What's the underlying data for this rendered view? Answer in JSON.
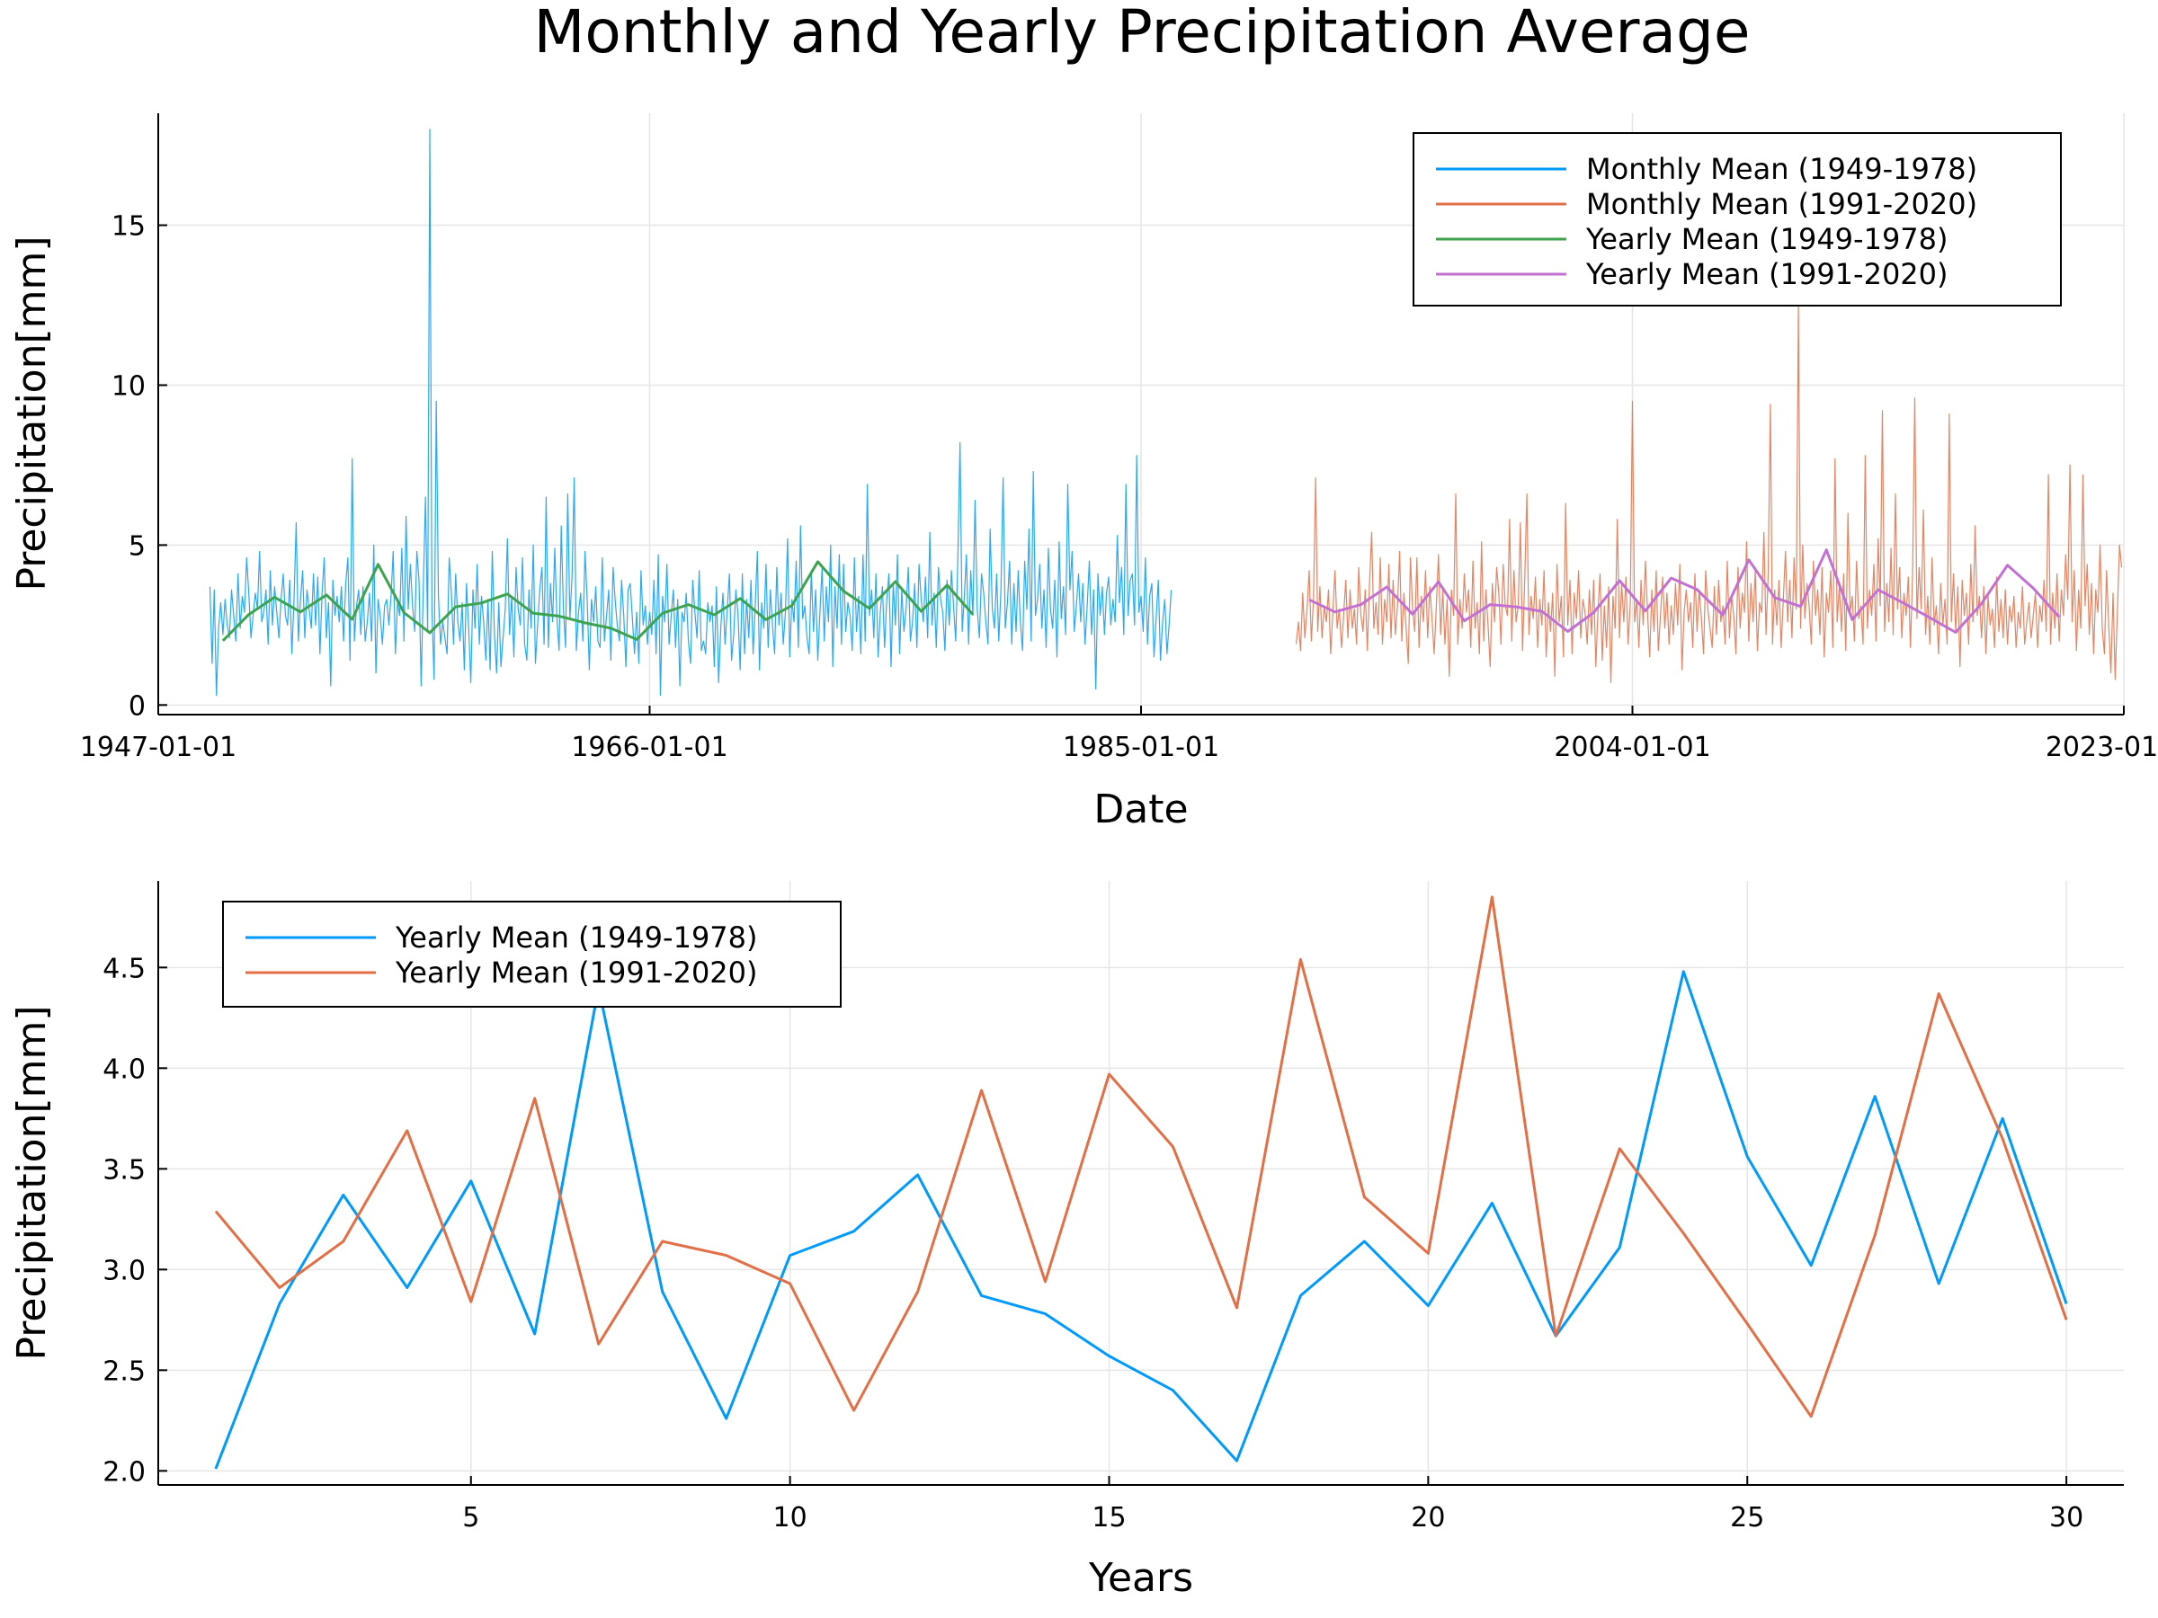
{
  "title": "Monthly and Yearly Precipitation Average",
  "chart_data": [
    {
      "type": "line",
      "xlabel": "Date",
      "ylabel": "Precipitation[mm]",
      "xlim": [
        "1947-01-01",
        "2023-01-01"
      ],
      "ylim": [
        -0.3,
        18.5
      ],
      "xticks": [
        "1947-01-01",
        "1966-01-01",
        "1985-01-01",
        "2004-01-01",
        "2023-01-01"
      ],
      "yticks": [
        0,
        5,
        10,
        15
      ],
      "grid": true,
      "legend_position": "top-right",
      "legend": [
        "Monthly Mean (1949-1978)",
        "Monthly Mean (1991-2020)",
        "Yearly Mean (1949-1978)",
        "Yearly Mean (1991-2020)"
      ],
      "series": [
        {
          "name": "Monthly Mean (1949-1978)",
          "color": "#009AFA",
          "x_start": "1949-01-01",
          "x_step": "monthly",
          "values": [
            3.7,
            1.3,
            3.6,
            0.3,
            2.4,
            3.2,
            2.2,
            3.3,
            2.5,
            2.1,
            3.6,
            2.8,
            2.0,
            4.1,
            2.4,
            3.4,
            2.9,
            4.6,
            3.5,
            2.1,
            2.8,
            3.5,
            3.0,
            4.8,
            2.6,
            2.9,
            3.6,
            1.9,
            4.2,
            2.5,
            3.7,
            2.9,
            2.1,
            3.3,
            4.1,
            2.8,
            2.5,
            3.9,
            1.6,
            3.3,
            5.7,
            2.0,
            3.3,
            4.2,
            2.1,
            3.6,
            3.0,
            2.4,
            4.1,
            2.5,
            4.0,
            1.6,
            3.5,
            4.6,
            2.1,
            3.2,
            0.6,
            3.9,
            2.8,
            3.4,
            2.6,
            3.7,
            2.0,
            3.8,
            4.6,
            1.4,
            7.7,
            2.0,
            3.1,
            3.6,
            2.2,
            3.7,
            2.0,
            2.6,
            3.5,
            2.0,
            5.0,
            1.0,
            3.3,
            2.8,
            1.9,
            3.1,
            3.3,
            2.5,
            3.4,
            4.8,
            1.6,
            3.2,
            2.8,
            4.9,
            2.0,
            5.9,
            3.0,
            4.4,
            3.1,
            2.3,
            4.8,
            3.9,
            0.6,
            3.7,
            6.5,
            2.3,
            18.0,
            2.9,
            0.8,
            9.5,
            3.4,
            1.9,
            2.6,
            2.1,
            1.6,
            4.6,
            3.5,
            1.9,
            4.1,
            2.6,
            2.0,
            3.2,
            1.1,
            3.8,
            2.4,
            0.7,
            3.6,
            2.4,
            4.4,
            1.9,
            3.4,
            2.6,
            1.4,
            3.3,
            1.1,
            4.8,
            2.2,
            1.0,
            3.2,
            1.2,
            2.1,
            3.0,
            5.2,
            2.2,
            3.4,
            1.5,
            4.3,
            3.0,
            2.5,
            4.6,
            1.9,
            1.4,
            3.6,
            2.4,
            5.0,
            1.3,
            2.5,
            3.6,
            4.3,
            1.9,
            6.5,
            1.8,
            3.8,
            2.6,
            4.9,
            2.7,
            1.7,
            5.6,
            3.0,
            1.8,
            6.6,
            2.7,
            4.0,
            7.1,
            1.7,
            2.9,
            3.5,
            2.0,
            4.8,
            3.3,
            1.1,
            3.3,
            2.6,
            3.7,
            2.0,
            1.8,
            4.6,
            2.0,
            2.8,
            3.6,
            1.4,
            4.3,
            3.3,
            2.5,
            2.0,
            3.9,
            2.8,
            1.2,
            3.6,
            3.8,
            2.7,
            1.6,
            2.9,
            1.3,
            4.2,
            2.5,
            3.1,
            1.9,
            2.9,
            2.2,
            3.9,
            1.6,
            4.7,
            0.3,
            3.4,
            2.6,
            4.4,
            1.9,
            2.8,
            3.6,
            1.8,
            3.3,
            0.6,
            2.9,
            2.6,
            3.5,
            2.0,
            1.3,
            3.9,
            2.9,
            2.1,
            4.2,
            1.7,
            2.0,
            1.6,
            3.2,
            2.6,
            3.1,
            1.2,
            3.7,
            0.7,
            2.4,
            3.5,
            1.9,
            3.0,
            4.1,
            1.4,
            2.2,
            3.6,
            2.8,
            1.1,
            4.1,
            1.6,
            3.3,
            2.1,
            3.9,
            1.6,
            3.1,
            4.8,
            1.1,
            3.2,
            2.4,
            4.4,
            1.8,
            3.6,
            2.5,
            1.6,
            4.3,
            2.5,
            3.5,
            1.9,
            2.9,
            5.2,
            1.5,
            3.3,
            2.6,
            4.5,
            1.8,
            5.6,
            2.7,
            3.1,
            2.1,
            1.6,
            4.2,
            2.3,
            3.6,
            1.4,
            2.9,
            4.3,
            2.0,
            3.7,
            2.6,
            5.0,
            1.2,
            3.7,
            2.4,
            4.7,
            1.9,
            4.4,
            2.3,
            3.2,
            2.8,
            1.7,
            4.6,
            2.3,
            3.4,
            1.6,
            4.7,
            2.0,
            6.9,
            2.8,
            3.6,
            2.1,
            4.1,
            1.5,
            2.9,
            3.7,
            1.8,
            3.3,
            4.1,
            1.2,
            3.8,
            2.5,
            4.7,
            1.6,
            3.6,
            2.3,
            3.0,
            4.3,
            2.0,
            2.6,
            3.8,
            1.8,
            4.4,
            3.3,
            2.6,
            4.0,
            2.1,
            5.4,
            2.5,
            3.5,
            1.8,
            4.3,
            3.3,
            2.9,
            1.7,
            3.9,
            2.5,
            4.2,
            3.1,
            2.0,
            4.6,
            8.2,
            2.3,
            3.4,
            4.7,
            1.9,
            4.2,
            2.8,
            6.4,
            3.0,
            2.1,
            4.1,
            3.5,
            2.6,
            1.9,
            5.5,
            3.0,
            2.4,
            4.1,
            2.0,
            3.6,
            7.1,
            2.4,
            3.2,
            4.5,
            1.9,
            3.8,
            2.3,
            4.2,
            2.6,
            1.7,
            4.5,
            3.0,
            5.5,
            2.0,
            7.3,
            2.8,
            3.3,
            4.4,
            2.4,
            3.6,
            1.8,
            4.9,
            3.0,
            2.4,
            3.9,
            1.5,
            5.1,
            2.7,
            3.7,
            2.2,
            6.9,
            3.6,
            4.8,
            2.3,
            3.1,
            4.1,
            2.6,
            3.8,
            1.9,
            3.1,
            4.5,
            2.2,
            3.6,
            0.5,
            4.1,
            2.8,
            3.7,
            2.2,
            3.5,
            4.0,
            2.5,
            3.3,
            2.6,
            5.3,
            3.2,
            4.3,
            2.2,
            6.9,
            2.8,
            3.9,
            4.1,
            2.5,
            7.8,
            2.9,
            3.4,
            2.3,
            4.6,
            1.9,
            3.4,
            3.8,
            1.5,
            2.7,
            3.9,
            1.4,
            2.6,
            3.3,
            1.6,
            2.5,
            3.6
          ]
        },
        {
          "name": "Monthly Mean (1991-2020)",
          "color": "#E26F46",
          "x_start": "1991-01-01",
          "x_step": "monthly",
          "values": [
            1.9,
            2.6,
            1.7,
            3.5,
            2.1,
            3.0,
            4.2,
            2.0,
            3.3,
            7.1,
            2.3,
            3.7,
            2.1,
            3.1,
            2.6,
            3.6,
            1.6,
            2.9,
            4.2,
            2.4,
            3.0,
            1.8,
            2.8,
            3.9,
            2.1,
            3.6,
            2.4,
            3.0,
            1.9,
            4.3,
            2.8,
            2.3,
            3.6,
            1.7,
            3.8,
            5.4,
            2.4,
            3.2,
            2.2,
            4.6,
            1.9,
            3.3,
            2.6,
            4.4,
            2.1,
            3.9,
            2.2,
            3.1,
            4.8,
            2.0,
            3.5,
            2.4,
            1.3,
            4.6,
            3.0,
            2.3,
            4.6,
            1.8,
            3.4,
            2.6,
            4.2,
            2.1,
            3.7,
            2.7,
            1.6,
            3.1,
            4.7,
            2.2,
            3.6,
            1.9,
            3.3,
            0.9,
            3.6,
            2.8,
            6.6,
            1.9,
            3.3,
            2.4,
            4.1,
            2.9,
            3.6,
            1.8,
            4.5,
            2.4,
            3.2,
            1.6,
            5.1,
            2.0,
            3.6,
            2.5,
            1.2,
            3.8,
            2.6,
            4.3,
            3.5,
            1.9,
            4.4,
            3.1,
            2.8,
            5.8,
            2.0,
            4.2,
            2.6,
            3.1,
            5.7,
            1.7,
            3.9,
            6.6,
            2.2,
            3.4,
            2.7,
            4.0,
            1.8,
            3.3,
            2.5,
            4.2,
            1.5,
            3.2,
            2.3,
            3.5,
            0.9,
            4.4,
            2.6,
            3.4,
            1.5,
            6.3,
            2.5,
            3.9,
            1.6,
            3.5,
            2.7,
            4.2,
            2.1,
            3.3,
            2.9,
            1.9,
            3.6,
            2.2,
            3.9,
            1.2,
            2.9,
            4.1,
            1.4,
            3.1,
            1.8,
            3.7,
            0.7,
            3.4,
            2.4,
            5.8,
            2.1,
            3.8,
            2.6,
            4.0,
            1.9,
            3.2,
            9.5,
            2.6,
            3.3,
            1.8,
            3.9,
            2.5,
            4.5,
            2.9,
            1.5,
            3.6,
            2.3,
            4.2,
            1.7,
            2.8,
            4.0,
            2.4,
            3.5,
            1.9,
            3.1,
            2.2,
            3.8,
            2.5,
            4.4,
            1.1,
            2.9,
            3.6,
            2.6,
            3.2,
            1.8,
            4.1,
            2.3,
            3.6,
            2.7,
            1.6,
            4.2,
            3.0,
            2.4,
            1.8,
            3.7,
            2.2,
            3.9,
            2.6,
            3.1,
            1.9,
            4.5,
            2.1,
            3.4,
            2.8,
            1.6,
            4.3,
            2.4,
            3.5,
            2.9,
            5.1,
            2.0,
            3.8,
            2.6,
            4.2,
            1.7,
            3.2,
            2.9,
            5.4,
            2.2,
            4.1,
            9.4,
            1.9,
            3.6,
            2.5,
            3.9,
            1.8,
            3.3,
            4.8,
            2.6,
            3.9,
            2.1,
            4.6,
            3.0,
            12.5,
            2.4,
            5.0,
            2.7,
            3.8,
            3.1,
            1.9,
            4.5,
            2.8,
            3.6,
            2.2,
            4.3,
            1.5,
            3.5,
            2.9,
            4.2,
            1.8,
            7.7,
            2.6,
            3.7,
            2.3,
            4.1,
            1.7,
            6.0,
            2.9,
            3.4,
            2.0,
            4.5,
            2.7,
            3.1,
            1.9,
            7.8,
            2.4,
            3.6,
            2.8,
            4.4,
            2.0,
            5.2,
            3.1,
            9.2,
            2.3,
            3.8,
            2.6,
            4.9,
            2.2,
            6.6,
            3.0,
            4.3,
            2.1,
            3.5,
            2.8,
            4.0,
            1.8,
            4.1,
            9.6,
            2.7,
            4.3,
            3.0,
            6.1,
            2.2,
            3.4,
            1.9,
            4.6,
            2.5,
            3.1,
            1.6,
            3.8,
            2.5,
            3.3,
            1.9,
            9.1,
            2.6,
            4.1,
            2.3,
            3.7,
            1.2,
            3.9,
            2.8,
            3.5,
            1.9,
            4.4,
            2.6,
            5.6,
            2.8,
            3.4,
            2.1,
            3.7,
            1.6,
            3.4,
            2.5,
            3.0,
            1.8,
            4.0,
            2.3,
            3.3,
            2.1,
            3.6,
            1.9,
            3.1,
            2.6,
            3.4,
            1.8,
            2.9,
            2.4,
            3.7,
            1.9,
            2.6,
            3.2,
            2.1,
            2.8,
            3.5,
            1.8,
            3.1,
            2.6,
            3.9,
            2.3,
            7.2,
            1.9,
            3.5,
            2.4,
            4.1,
            2.0,
            3.6,
            2.8,
            4.7,
            3.3,
            7.5,
            2.6,
            4.2,
            1.7,
            3.6,
            2.4,
            7.2,
            3.1,
            4.4,
            2.2,
            3.8,
            1.6,
            3.6,
            2.9,
            5.0,
            2.4,
            1.6,
            4.2,
            2.5,
            1.0,
            3.5,
            0.8,
            2.9,
            5.0,
            4.3
          ]
        },
        {
          "name": "Yearly Mean (1949-1978)",
          "color": "#3DA44D",
          "x_start": "1949-07-01",
          "x_step": "yearly",
          "values": [
            2.01,
            2.83,
            3.37,
            2.91,
            3.44,
            2.68,
            4.4,
            2.89,
            2.26,
            3.07,
            3.19,
            3.47,
            2.87,
            2.78,
            2.57,
            2.4,
            2.05,
            2.87,
            3.14,
            2.82,
            3.33,
            2.67,
            3.11,
            4.48,
            3.56,
            3.02,
            3.86,
            2.93,
            3.75,
            2.83
          ]
        },
        {
          "name": "Yearly Mean (1991-2020)",
          "color": "#C271D2",
          "x_start": "1991-07-01",
          "x_step": "yearly",
          "values": [
            3.29,
            2.91,
            3.14,
            3.69,
            2.84,
            3.85,
            2.63,
            3.14,
            3.07,
            2.93,
            2.3,
            2.89,
            3.89,
            2.94,
            3.97,
            3.61,
            2.81,
            4.54,
            3.36,
            3.08,
            4.85,
            2.67,
            3.6,
            3.18,
            2.73,
            2.27,
            3.17,
            4.37,
            3.65,
            2.75
          ]
        }
      ]
    },
    {
      "type": "line",
      "xlabel": "Years",
      "ylabel": "Precipitation[mm]",
      "xlim": [
        0.1,
        30.9
      ],
      "ylim": [
        1.93,
        4.93
      ],
      "xticks": [
        5,
        10,
        15,
        20,
        25,
        30
      ],
      "yticks": [
        2.0,
        2.5,
        3.0,
        3.5,
        4.0,
        4.5
      ],
      "grid": true,
      "legend_position": "top-left",
      "legend": [
        "Yearly Mean (1949-1978)",
        "Yearly Mean (1991-2020)"
      ],
      "x": [
        1,
        2,
        3,
        4,
        5,
        6,
        7,
        8,
        9,
        10,
        11,
        12,
        13,
        14,
        15,
        16,
        17,
        18,
        19,
        20,
        21,
        22,
        23,
        24,
        25,
        26,
        27,
        28,
        29,
        30
      ],
      "series": [
        {
          "name": "Yearly Mean (1949-1978)",
          "color": "#009AFA",
          "values": [
            2.01,
            2.83,
            3.37,
            2.91,
            3.44,
            2.68,
            4.4,
            2.89,
            2.26,
            3.07,
            3.19,
            3.47,
            2.87,
            2.78,
            2.57,
            2.4,
            2.05,
            2.87,
            3.14,
            2.82,
            3.33,
            2.67,
            3.11,
            4.48,
            3.56,
            3.02,
            3.86,
            2.93,
            3.75,
            2.83
          ]
        },
        {
          "name": "Yearly Mean (1991-2020)",
          "color": "#E26F46",
          "values": [
            3.29,
            2.91,
            3.14,
            3.69,
            2.84,
            3.85,
            2.63,
            3.14,
            3.07,
            2.93,
            2.3,
            2.89,
            3.89,
            2.94,
            3.97,
            3.61,
            2.81,
            4.54,
            3.36,
            3.08,
            4.85,
            2.67,
            3.6,
            3.18,
            2.73,
            2.27,
            3.17,
            4.37,
            3.65,
            2.75
          ]
        }
      ]
    }
  ]
}
